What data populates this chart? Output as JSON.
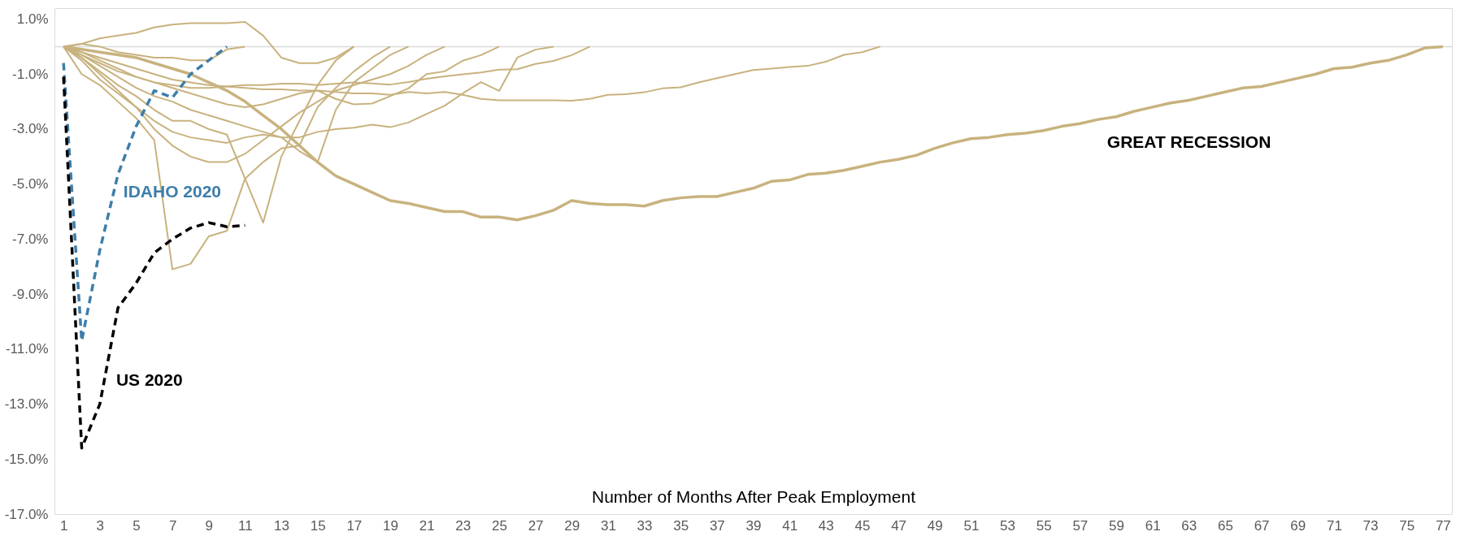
{
  "chart_data": {
    "type": "line",
    "xlabel": "Number of Months After Peak Employment",
    "xlim": [
      0.5,
      77.5
    ],
    "xticks": [
      1,
      3,
      5,
      7,
      9,
      11,
      13,
      15,
      17,
      19,
      21,
      23,
      25,
      27,
      29,
      31,
      33,
      35,
      37,
      39,
      41,
      43,
      45,
      47,
      49,
      51,
      53,
      55,
      57,
      59,
      61,
      63,
      65,
      67,
      69,
      71,
      73,
      75,
      77
    ],
    "ylim": [
      -17,
      1.4
    ],
    "yticks": [
      {
        "value": 1,
        "label": "1.0%"
      },
      {
        "value": -1,
        "label": "-1.0%"
      },
      {
        "value": -3,
        "label": "-3.0%"
      },
      {
        "value": -5,
        "label": "-5.0%"
      },
      {
        "value": -7,
        "label": "-7.0%"
      },
      {
        "value": -9,
        "label": "-9.0%"
      },
      {
        "value": -11,
        "label": "-11.0%"
      },
      {
        "value": -13,
        "label": "-13.0%"
      },
      {
        "value": -15,
        "label": "-15.0%"
      },
      {
        "value": -17,
        "label": "-17.0%"
      }
    ],
    "grid": false,
    "marker": "none",
    "line_style": "solid",
    "ref_lines": [
      {
        "axis": "y",
        "value": 0,
        "color": "#d9d9d9"
      }
    ],
    "series": [
      {
        "color": "#c8b27e",
        "x": [
          1,
          2,
          3,
          4,
          5,
          6,
          7,
          8,
          9,
          10,
          11,
          12,
          13,
          14,
          15,
          16,
          17
        ],
        "values": [
          0.0,
          0.1,
          0.3,
          0.4,
          0.5,
          0.7,
          0.8,
          0.85,
          0.85,
          0.85,
          0.9,
          0.4,
          -0.4,
          -0.6,
          -0.6,
          -0.4,
          0.0
        ]
      },
      {
        "color": "#c8b27e",
        "x": [
          1,
          2,
          3,
          4,
          5,
          6,
          7,
          8,
          9,
          10,
          11
        ],
        "values": [
          0,
          0.1,
          0.0,
          -0.2,
          -0.3,
          -0.4,
          -0.4,
          -0.5,
          -0.5,
          -0.1,
          0
        ]
      },
      {
        "color": "#c8b27e",
        "x": [
          1,
          2,
          3,
          4,
          5,
          6,
          7,
          8,
          9,
          10,
          11,
          12,
          13,
          14,
          15,
          16,
          17,
          18,
          19
        ],
        "values": [
          0,
          -1.0,
          -1.4,
          -2.0,
          -2.6,
          -3.4,
          -8.1,
          -7.9,
          -6.9,
          -6.7,
          -4.8,
          -4.2,
          -3.7,
          -3.6,
          -2.2,
          -1.5,
          -0.9,
          -0.4,
          0
        ]
      },
      {
        "color": "#c8b27e",
        "x": [
          1,
          2,
          3,
          4,
          5,
          6,
          7,
          8,
          9,
          10,
          11,
          12,
          13,
          14,
          15,
          16,
          17
        ],
        "values": [
          0,
          -0.4,
          -0.9,
          -1.4,
          -1.8,
          -2.3,
          -2.7,
          -2.7,
          -3.0,
          -3.2,
          -4.8,
          -6.4,
          -4.0,
          -2.7,
          -1.4,
          -0.5,
          0
        ]
      },
      {
        "color": "#c8b27e",
        "x": [
          1,
          2,
          3,
          4,
          5,
          6,
          7,
          8,
          9,
          10,
          11,
          12,
          13,
          14,
          15,
          16,
          17,
          18,
          19,
          20
        ],
        "values": [
          0,
          -0.5,
          -1.2,
          -1.7,
          -2.2,
          -2.7,
          -3.1,
          -3.3,
          -3.4,
          -3.5,
          -3.3,
          -3.2,
          -3.3,
          -3.8,
          -4.2,
          -2.3,
          -1.3,
          -0.8,
          -0.3,
          0
        ]
      },
      {
        "color": "#c8b27e",
        "x": [
          1,
          2,
          3,
          4,
          5,
          6,
          7,
          8,
          9,
          10,
          11,
          12,
          13,
          14,
          15,
          16,
          17,
          18,
          19,
          20,
          21,
          22
        ],
        "values": [
          0,
          -0.4,
          -1.0,
          -1.6,
          -2.2,
          -3.0,
          -3.6,
          -4.0,
          -4.2,
          -4.2,
          -3.9,
          -3.4,
          -2.9,
          -2.4,
          -2.0,
          -1.6,
          -1.4,
          -1.2,
          -1.0,
          -0.7,
          -0.3,
          0
        ]
      },
      {
        "color": "#c8b27e",
        "x": [
          1,
          2,
          3,
          4,
          5,
          6,
          7,
          8,
          9,
          10,
          11,
          12,
          13,
          14,
          15,
          16,
          17,
          18,
          19,
          20,
          21,
          22,
          23,
          24,
          25
        ],
        "values": [
          0,
          -0.2,
          -0.5,
          -0.8,
          -1.1,
          -1.3,
          -1.5,
          -1.7,
          -1.9,
          -2.1,
          -2.2,
          -2.1,
          -1.9,
          -1.7,
          -1.6,
          -1.9,
          -2.1,
          -2.07,
          -1.8,
          -1.52,
          -1.0,
          -0.9,
          -0.51,
          -0.31,
          0
        ]
      },
      {
        "color": "#c8b27e",
        "x": [
          1,
          2,
          3,
          4,
          5,
          6,
          7,
          8,
          9,
          10,
          11,
          12,
          13,
          14,
          15,
          16,
          17,
          18,
          19,
          20,
          21,
          22,
          23,
          24,
          25,
          26,
          27,
          28
        ],
        "values": [
          0,
          -0.3,
          -0.7,
          -1.1,
          -1.5,
          -1.8,
          -2.0,
          -2.3,
          -2.5,
          -2.7,
          -2.9,
          -3.1,
          -3.3,
          -3.3,
          -3.1,
          -3.0,
          -2.95,
          -2.84,
          -2.93,
          -2.76,
          -2.45,
          -2.15,
          -1.7,
          -1.29,
          -1.61,
          -0.4,
          -0.11,
          0
        ]
      },
      {
        "color": "#c8b27e",
        "x": [
          1,
          2,
          3,
          4,
          5,
          6,
          7,
          8,
          9,
          10,
          11,
          12,
          13,
          14,
          15,
          16,
          17,
          18,
          19,
          20,
          21,
          22,
          23,
          24,
          25,
          26,
          27,
          28,
          29,
          30
        ],
        "values": [
          0,
          -0.3,
          -0.6,
          -0.9,
          -1.1,
          -1.3,
          -1.4,
          -1.5,
          -1.5,
          -1.45,
          -1.4,
          -1.4,
          -1.35,
          -1.35,
          -1.4,
          -1.35,
          -1.3,
          -1.34,
          -1.38,
          -1.29,
          -1.17,
          -1.08,
          -1.01,
          -0.94,
          -0.84,
          -0.82,
          -0.63,
          -0.52,
          -0.31,
          0
        ]
      },
      {
        "color": "#c8b27e",
        "x": [
          1,
          2,
          3,
          4,
          5,
          6,
          7,
          8,
          9,
          10,
          11,
          12,
          13,
          14,
          15,
          16,
          17,
          18,
          19,
          20,
          21,
          22,
          23,
          24,
          25,
          26,
          27,
          28,
          29,
          30,
          31,
          32,
          33,
          34,
          35,
          36,
          37,
          38,
          39,
          40,
          41,
          42,
          43,
          44,
          45,
          46
        ],
        "values": [
          0,
          -0.2,
          -0.4,
          -0.6,
          -0.8,
          -1.0,
          -1.2,
          -1.3,
          -1.4,
          -1.45,
          -1.5,
          -1.55,
          -1.55,
          -1.6,
          -1.6,
          -1.65,
          -1.7,
          -1.7,
          -1.75,
          -1.65,
          -1.7,
          -1.65,
          -1.75,
          -1.9,
          -1.95,
          -1.95,
          -1.95,
          -1.95,
          -1.97,
          -1.9,
          -1.75,
          -1.73,
          -1.66,
          -1.52,
          -1.48,
          -1.3,
          -1.15,
          -1.0,
          -0.85,
          -0.8,
          -0.74,
          -0.7,
          -0.55,
          -0.3,
          -0.2,
          0
        ]
      },
      {
        "color": "#c8b27e",
        "x": [
          1,
          2,
          3,
          4,
          5,
          6,
          7,
          8,
          9,
          10,
          11,
          12,
          13,
          14,
          15,
          16,
          17,
          18,
          19,
          20,
          21,
          22,
          23,
          24,
          25,
          26,
          27,
          28,
          29,
          30,
          31,
          32,
          33,
          34,
          35,
          36,
          37,
          38,
          39,
          40,
          41,
          42,
          43,
          44,
          45,
          46,
          47,
          48,
          49,
          50,
          51,
          52,
          53,
          54,
          55,
          56,
          57,
          58,
          59,
          60,
          61,
          62,
          63,
          64,
          65,
          66,
          67,
          68,
          69,
          70,
          71,
          72,
          73,
          74,
          75,
          76,
          77
        ],
        "values": [
          0,
          -0.1,
          -0.2,
          -0.3,
          -0.4,
          -0.6,
          -0.8,
          -1.0,
          -1.3,
          -1.6,
          -2.0,
          -2.5,
          -3.0,
          -3.6,
          -4.2,
          -4.7,
          -5.0,
          -5.3,
          -5.6,
          -5.7,
          -5.85,
          -6.0,
          -6.0,
          -6.2,
          -6.2,
          -6.3,
          -6.15,
          -5.95,
          -5.6,
          -5.7,
          -5.75,
          -5.75,
          -5.8,
          -5.6,
          -5.5,
          -5.45,
          -5.45,
          -5.3,
          -5.15,
          -4.9,
          -4.85,
          -4.65,
          -4.6,
          -4.5,
          -4.35,
          -4.2,
          -4.1,
          -3.95,
          -3.7,
          -3.5,
          -3.35,
          -3.3,
          -3.2,
          -3.15,
          -3.05,
          -2.9,
          -2.8,
          -2.65,
          -2.55,
          -2.35,
          -2.2,
          -2.05,
          -1.95,
          -1.8,
          -1.65,
          -1.5,
          -1.45,
          -1.3,
          -1.15,
          -1.0,
          -0.8,
          -0.75,
          -0.6,
          -0.5,
          -0.3,
          -0.05,
          0
        ]
      },
      {
        "name": "IDAHO 2020",
        "color": "#3d7eaa",
        "line_style": "dashed",
        "x": [
          1,
          2,
          3,
          4,
          5,
          6,
          7,
          8,
          9,
          10
        ],
        "values": [
          -0.6,
          -10.7,
          -7.4,
          -4.65,
          -2.9,
          -1.6,
          -1.85,
          -1.0,
          -0.5,
          0.0
        ]
      },
      {
        "name": "US 2020",
        "color": "#000000",
        "line_style": "dashed",
        "x": [
          1,
          2,
          3,
          4,
          5,
          6,
          7,
          8,
          9,
          10,
          11
        ],
        "values": [
          -1.1,
          -14.6,
          -13.0,
          -9.5,
          -8.6,
          -7.5,
          -7.0,
          -6.6,
          -6.4,
          -6.55,
          -6.5
        ]
      }
    ],
    "annotations": [
      "GREAT RECESSION"
    ]
  }
}
